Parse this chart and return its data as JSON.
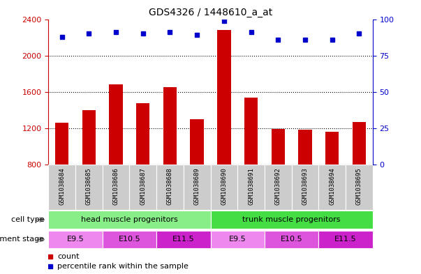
{
  "title": "GDS4326 / 1448610_a_at",
  "samples": [
    "GSM1038684",
    "GSM1038685",
    "GSM1038686",
    "GSM1038687",
    "GSM1038688",
    "GSM1038689",
    "GSM1038690",
    "GSM1038691",
    "GSM1038692",
    "GSM1038693",
    "GSM1038694",
    "GSM1038695"
  ],
  "counts": [
    1260,
    1400,
    1680,
    1480,
    1650,
    1300,
    2280,
    1540,
    1190,
    1185,
    1160,
    1270
  ],
  "percentiles": [
    88,
    90,
    91,
    90,
    91,
    89,
    99,
    91,
    86,
    86,
    86,
    90
  ],
  "ylim_left": [
    800,
    2400
  ],
  "ylim_right": [
    0,
    100
  ],
  "yticks_left": [
    800,
    1200,
    1600,
    2000,
    2400
  ],
  "yticks_right": [
    0,
    25,
    50,
    75,
    100
  ],
  "bar_color": "#cc0000",
  "dot_color": "#0000cc",
  "bar_width": 0.5,
  "cell_type_groups": [
    {
      "label": "head muscle progenitors",
      "start": 0,
      "end": 5,
      "color": "#88ee88"
    },
    {
      "label": "trunk muscle progenitors",
      "start": 6,
      "end": 11,
      "color": "#44dd44"
    }
  ],
  "dev_stage_groups": [
    {
      "label": "E9.5",
      "start": 0,
      "end": 1,
      "color": "#ee88ee"
    },
    {
      "label": "E10.5",
      "start": 2,
      "end": 3,
      "color": "#dd55dd"
    },
    {
      "label": "E11.5",
      "start": 4,
      "end": 5,
      "color": "#cc22cc"
    },
    {
      "label": "E9.5",
      "start": 6,
      "end": 7,
      "color": "#ee88ee"
    },
    {
      "label": "E10.5",
      "start": 8,
      "end": 9,
      "color": "#dd55dd"
    },
    {
      "label": "E11.5",
      "start": 10,
      "end": 11,
      "color": "#cc22cc"
    }
  ],
  "legend_count_label": "count",
  "legend_pct_label": "percentile rank within the sample",
  "cell_type_row_label": "cell type",
  "dev_stage_row_label": "development stage",
  "sample_box_color": "#cccccc",
  "tick_color_left": "#cc0000",
  "tick_color_right": "#0000cc"
}
